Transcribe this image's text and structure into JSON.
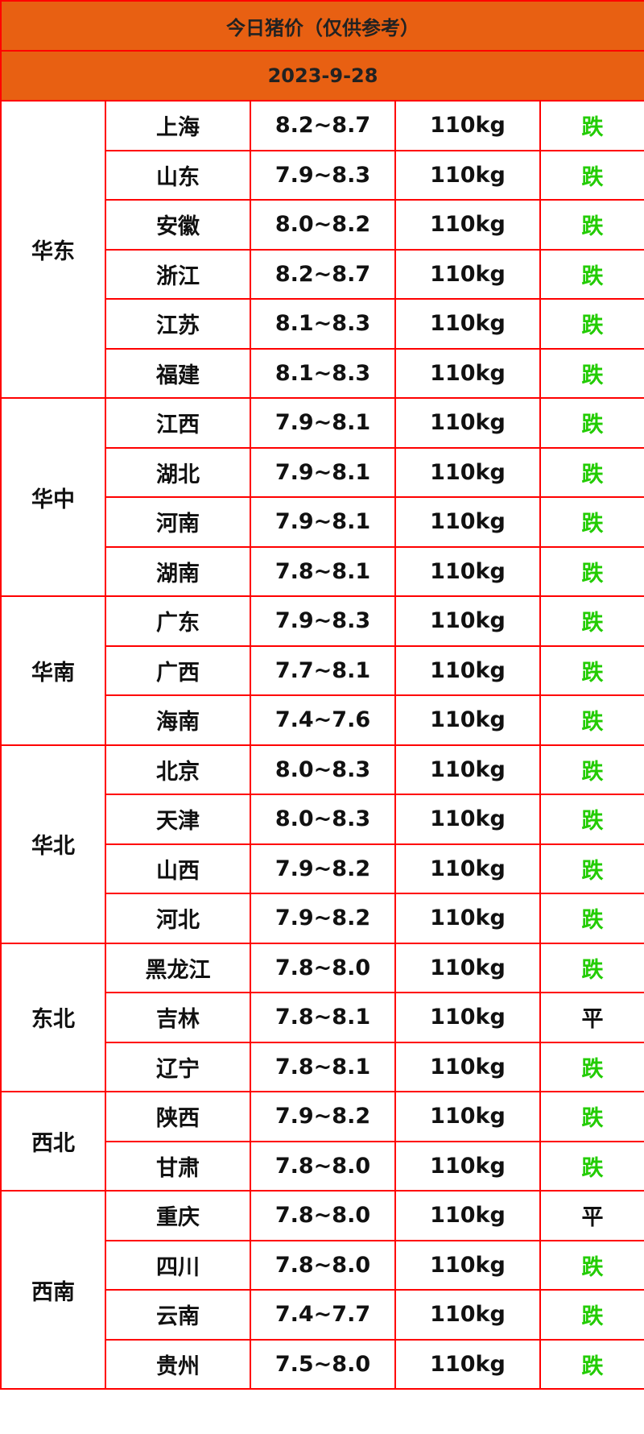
{
  "title": "今日猪价（仅供参考）",
  "date": "2023-9-28",
  "colors": {
    "header_bg": "#e86012",
    "border": "#ff0000",
    "down": "#22cc00",
    "flat": "#111111"
  },
  "regions": [
    {
      "name": "华东",
      "rows": [
        {
          "province": "上海",
          "price": "8.2~8.7",
          "weight": "110kg",
          "trend": "跌"
        },
        {
          "province": "山东",
          "price": "7.9~8.3",
          "weight": "110kg",
          "trend": "跌"
        },
        {
          "province": "安徽",
          "price": "8.0~8.2",
          "weight": "110kg",
          "trend": "跌"
        },
        {
          "province": "浙江",
          "price": "8.2~8.7",
          "weight": "110kg",
          "trend": "跌"
        },
        {
          "province": "江苏",
          "price": "8.1~8.3",
          "weight": "110kg",
          "trend": "跌"
        },
        {
          "province": "福建",
          "price": "8.1~8.3",
          "weight": "110kg",
          "trend": "跌"
        }
      ]
    },
    {
      "name": "华中",
      "rows": [
        {
          "province": "江西",
          "price": "7.9~8.1",
          "weight": "110kg",
          "trend": "跌"
        },
        {
          "province": "湖北",
          "price": "7.9~8.1",
          "weight": "110kg",
          "trend": "跌"
        },
        {
          "province": "河南",
          "price": "7.9~8.1",
          "weight": "110kg",
          "trend": "跌"
        },
        {
          "province": "湖南",
          "price": "7.8~8.1",
          "weight": "110kg",
          "trend": "跌"
        }
      ]
    },
    {
      "name": "华南",
      "rows": [
        {
          "province": "广东",
          "price": "7.9~8.3",
          "weight": "110kg",
          "trend": "跌"
        },
        {
          "province": "广西",
          "price": "7.7~8.1",
          "weight": "110kg",
          "trend": "跌"
        },
        {
          "province": "海南",
          "price": "7.4~7.6",
          "weight": "110kg",
          "trend": "跌"
        }
      ]
    },
    {
      "name": "华北",
      "rows": [
        {
          "province": "北京",
          "price": "8.0~8.3",
          "weight": "110kg",
          "trend": "跌"
        },
        {
          "province": "天津",
          "price": "8.0~8.3",
          "weight": "110kg",
          "trend": "跌"
        },
        {
          "province": "山西",
          "price": "7.9~8.2",
          "weight": "110kg",
          "trend": "跌"
        },
        {
          "province": "河北",
          "price": "7.9~8.2",
          "weight": "110kg",
          "trend": "跌"
        }
      ]
    },
    {
      "name": "东北",
      "rows": [
        {
          "province": "黑龙江",
          "price": "7.8~8.0",
          "weight": "110kg",
          "trend": "跌"
        },
        {
          "province": "吉林",
          "price": "7.8~8.1",
          "weight": "110kg",
          "trend": "平"
        },
        {
          "province": "辽宁",
          "price": "7.8~8.1",
          "weight": "110kg",
          "trend": "跌"
        }
      ]
    },
    {
      "name": "西北",
      "rows": [
        {
          "province": "陕西",
          "price": "7.9~8.2",
          "weight": "110kg",
          "trend": "跌"
        },
        {
          "province": "甘肃",
          "price": "7.8~8.0",
          "weight": "110kg",
          "trend": "跌"
        }
      ]
    },
    {
      "name": "西南",
      "rows": [
        {
          "province": "重庆",
          "price": "7.8~8.0",
          "weight": "110kg",
          "trend": "平"
        },
        {
          "province": "四川",
          "price": "7.8~8.0",
          "weight": "110kg",
          "trend": "跌"
        },
        {
          "province": "云南",
          "price": "7.4~7.7",
          "weight": "110kg",
          "trend": "跌"
        },
        {
          "province": "贵州",
          "price": "7.5~8.0",
          "weight": "110kg",
          "trend": "跌"
        }
      ]
    }
  ]
}
